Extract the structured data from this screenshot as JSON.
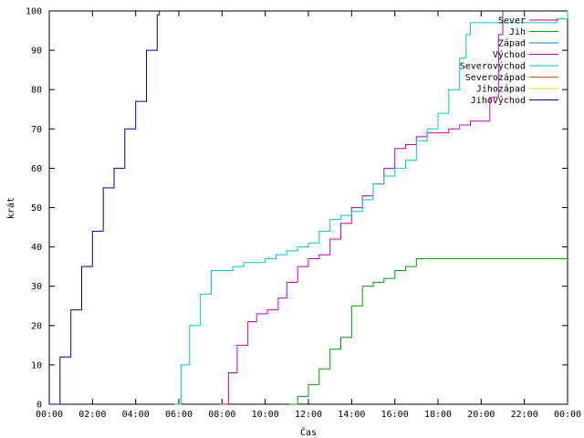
{
  "chart_data": {
    "type": "line",
    "title": "",
    "xlabel": "Čas",
    "ylabel": "krát",
    "x_unit": "hours",
    "xlim": [
      0,
      24
    ],
    "ylim": [
      0,
      100
    ],
    "x_ticks": [
      {
        "value": 0,
        "label": "00:00"
      },
      {
        "value": 2,
        "label": "02:00"
      },
      {
        "value": 4,
        "label": "04:00"
      },
      {
        "value": 6,
        "label": "06:00"
      },
      {
        "value": 8,
        "label": "08:00"
      },
      {
        "value": 10,
        "label": "10:00"
      },
      {
        "value": 12,
        "label": "12:00"
      },
      {
        "value": 14,
        "label": "14:00"
      },
      {
        "value": 16,
        "label": "16:00"
      },
      {
        "value": 18,
        "label": "18:00"
      },
      {
        "value": 20,
        "label": "20:00"
      },
      {
        "value": 22,
        "label": "22:00"
      },
      {
        "value": 24,
        "label": "00:00"
      }
    ],
    "y_ticks": [
      0,
      10,
      20,
      30,
      40,
      50,
      60,
      70,
      80,
      90,
      100
    ],
    "grid": false,
    "legend_position": "top-right",
    "series": [
      {
        "name": "Sever",
        "color": "#d0004a",
        "x": [],
        "y": []
      },
      {
        "name": "Jih",
        "color": "#00a000",
        "x": [
          11.1,
          11.5,
          12.0,
          12.5,
          13.0,
          13.5,
          14.0,
          14.5,
          15.0,
          15.5,
          16.0,
          16.5,
          17.0,
          18.0,
          20.0,
          22.0,
          24.0
        ],
        "y": [
          0,
          2,
          5,
          9,
          14,
          17,
          25,
          30,
          31,
          32,
          34,
          35,
          37,
          37,
          37,
          37,
          37
        ]
      },
      {
        "name": "Západ",
        "color": "#0080c0",
        "x": [],
        "y": []
      },
      {
        "name": "Východ",
        "color": "#c000c0",
        "x": [
          7.9,
          8.3,
          8.7,
          9.2,
          9.6,
          10.1,
          10.6,
          11.0,
          11.5,
          12.0,
          12.5,
          13.0,
          13.5,
          14.0,
          14.5,
          15.0,
          15.5,
          16.0,
          16.5,
          17.0,
          17.5,
          18.0,
          18.5,
          19.0,
          19.5,
          20.0,
          20.4,
          20.8,
          21.0
        ],
        "y": [
          0,
          8,
          15,
          21,
          23,
          24,
          27,
          31,
          35,
          37,
          38,
          42,
          46,
          50,
          53,
          56,
          60,
          65,
          66,
          68,
          69,
          69,
          70,
          71,
          72,
          72,
          78,
          94,
          100
        ]
      },
      {
        "name": "Severovýchod",
        "color": "#00c8c8",
        "x": [
          5.8,
          6.1,
          6.5,
          7.0,
          7.5,
          8.0,
          8.5,
          9.0,
          9.5,
          10.0,
          10.5,
          11.0,
          11.5,
          12.0,
          12.5,
          13.0,
          13.5,
          14.0,
          14.5,
          15.0,
          15.5,
          16.0,
          16.5,
          17.0,
          17.5,
          18.0,
          18.5,
          19.0,
          19.3,
          19.5,
          20.0,
          21.0,
          22.0,
          23.0,
          23.5,
          24.0
        ],
        "y": [
          0,
          10,
          20,
          28,
          34,
          34,
          35,
          36,
          36,
          37,
          38,
          39,
          40,
          41,
          44,
          47,
          48,
          49,
          52,
          56,
          58,
          60,
          62,
          67,
          70,
          74,
          80,
          88,
          94,
          97,
          97,
          97,
          97,
          97,
          98,
          100
        ]
      },
      {
        "name": "Severozápad",
        "color": "#c06000",
        "x": [],
        "y": []
      },
      {
        "name": "Jihozápad",
        "color": "#e8d000",
        "x": [],
        "y": []
      },
      {
        "name": "Jihovýchod",
        "color": "#0000a0",
        "x": [
          0.0,
          0.5,
          1.0,
          1.5,
          2.0,
          2.5,
          3.0,
          3.5,
          4.0,
          4.5,
          5.0,
          5.1
        ],
        "y": [
          0,
          12,
          24,
          35,
          44,
          55,
          60,
          70,
          77,
          90,
          99,
          100
        ]
      }
    ]
  }
}
